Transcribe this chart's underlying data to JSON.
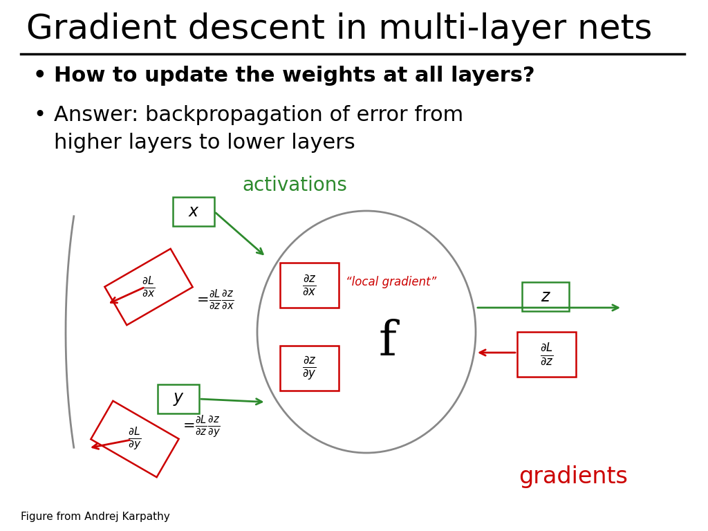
{
  "title": "Gradient descent in multi-layer nets",
  "bullet1": "How to update the weights at all layers?",
  "bullet2_line1": "Answer: backpropagation of error from",
  "bullet2_line2": "higher layers to lower layers",
  "activations_label": "activations",
  "gradients_label": "gradients",
  "local_gradient_label": "“local gradient”",
  "f_label": "f",
  "footer": "Figure from Andrej Karpathy",
  "title_color": "#000000",
  "green_color": "#2d8a2d",
  "red_color": "#cc0000",
  "gray_color": "#888888",
  "bg_color": "#ffffff",
  "title_fontsize": 36,
  "bullet_fontsize": 22,
  "diagram_fontsize": 18,
  "footer_fontsize": 11
}
